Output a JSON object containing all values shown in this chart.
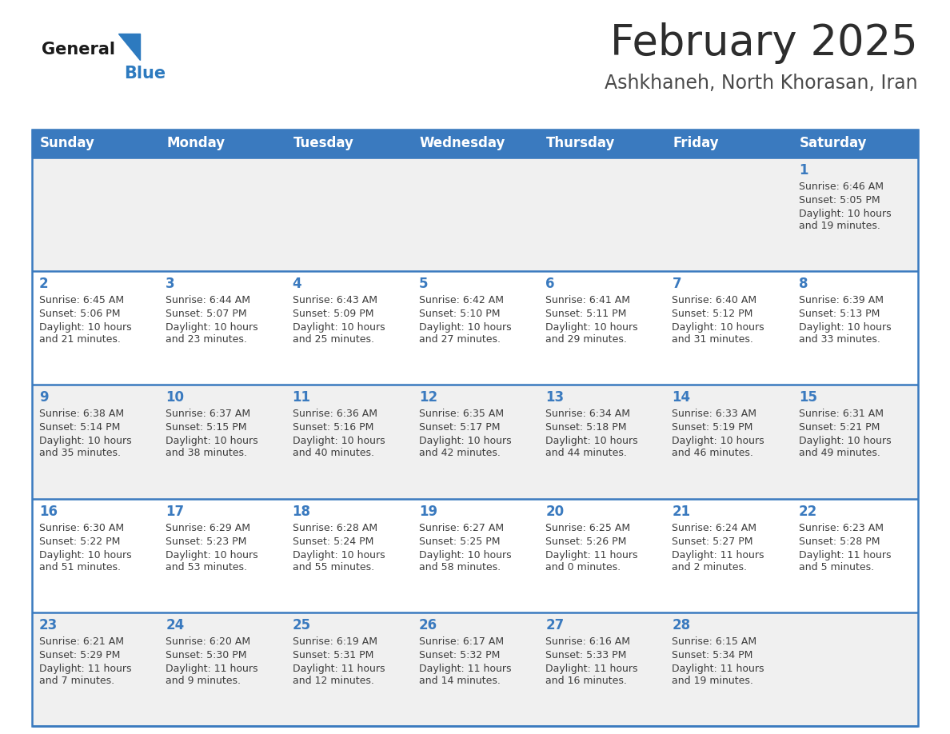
{
  "title": "February 2025",
  "subtitle": "Ashkhaneh, North Khorasan, Iran",
  "days_of_week": [
    "Sunday",
    "Monday",
    "Tuesday",
    "Wednesday",
    "Thursday",
    "Friday",
    "Saturday"
  ],
  "header_bg": "#3a7abf",
  "header_text": "#ffffff",
  "row_bg_odd": "#f0f0f0",
  "row_bg_even": "#ffffff",
  "separator_color": "#3a7abf",
  "day_num_color": "#3a7abf",
  "cell_text_color": "#3d3d3d",
  "title_color": "#2d2d2d",
  "subtitle_color": "#4a4a4a",
  "logo_general_color": "#1a1a1a",
  "logo_blue_color": "#2d7abf",
  "calendar": [
    [
      {
        "day": null,
        "sunrise": null,
        "sunset": null,
        "daylight_line1": null,
        "daylight_line2": null
      },
      {
        "day": null,
        "sunrise": null,
        "sunset": null,
        "daylight_line1": null,
        "daylight_line2": null
      },
      {
        "day": null,
        "sunrise": null,
        "sunset": null,
        "daylight_line1": null,
        "daylight_line2": null
      },
      {
        "day": null,
        "sunrise": null,
        "sunset": null,
        "daylight_line1": null,
        "daylight_line2": null
      },
      {
        "day": null,
        "sunrise": null,
        "sunset": null,
        "daylight_line1": null,
        "daylight_line2": null
      },
      {
        "day": null,
        "sunrise": null,
        "sunset": null,
        "daylight_line1": null,
        "daylight_line2": null
      },
      {
        "day": "1",
        "sunrise": "Sunrise: 6:46 AM",
        "sunset": "Sunset: 5:05 PM",
        "daylight_line1": "Daylight: 10 hours",
        "daylight_line2": "and 19 minutes."
      }
    ],
    [
      {
        "day": "2",
        "sunrise": "Sunrise: 6:45 AM",
        "sunset": "Sunset: 5:06 PM",
        "daylight_line1": "Daylight: 10 hours",
        "daylight_line2": "and 21 minutes."
      },
      {
        "day": "3",
        "sunrise": "Sunrise: 6:44 AM",
        "sunset": "Sunset: 5:07 PM",
        "daylight_line1": "Daylight: 10 hours",
        "daylight_line2": "and 23 minutes."
      },
      {
        "day": "4",
        "sunrise": "Sunrise: 6:43 AM",
        "sunset": "Sunset: 5:09 PM",
        "daylight_line1": "Daylight: 10 hours",
        "daylight_line2": "and 25 minutes."
      },
      {
        "day": "5",
        "sunrise": "Sunrise: 6:42 AM",
        "sunset": "Sunset: 5:10 PM",
        "daylight_line1": "Daylight: 10 hours",
        "daylight_line2": "and 27 minutes."
      },
      {
        "day": "6",
        "sunrise": "Sunrise: 6:41 AM",
        "sunset": "Sunset: 5:11 PM",
        "daylight_line1": "Daylight: 10 hours",
        "daylight_line2": "and 29 minutes."
      },
      {
        "day": "7",
        "sunrise": "Sunrise: 6:40 AM",
        "sunset": "Sunset: 5:12 PM",
        "daylight_line1": "Daylight: 10 hours",
        "daylight_line2": "and 31 minutes."
      },
      {
        "day": "8",
        "sunrise": "Sunrise: 6:39 AM",
        "sunset": "Sunset: 5:13 PM",
        "daylight_line1": "Daylight: 10 hours",
        "daylight_line2": "and 33 minutes."
      }
    ],
    [
      {
        "day": "9",
        "sunrise": "Sunrise: 6:38 AM",
        "sunset": "Sunset: 5:14 PM",
        "daylight_line1": "Daylight: 10 hours",
        "daylight_line2": "and 35 minutes."
      },
      {
        "day": "10",
        "sunrise": "Sunrise: 6:37 AM",
        "sunset": "Sunset: 5:15 PM",
        "daylight_line1": "Daylight: 10 hours",
        "daylight_line2": "and 38 minutes."
      },
      {
        "day": "11",
        "sunrise": "Sunrise: 6:36 AM",
        "sunset": "Sunset: 5:16 PM",
        "daylight_line1": "Daylight: 10 hours",
        "daylight_line2": "and 40 minutes."
      },
      {
        "day": "12",
        "sunrise": "Sunrise: 6:35 AM",
        "sunset": "Sunset: 5:17 PM",
        "daylight_line1": "Daylight: 10 hours",
        "daylight_line2": "and 42 minutes."
      },
      {
        "day": "13",
        "sunrise": "Sunrise: 6:34 AM",
        "sunset": "Sunset: 5:18 PM",
        "daylight_line1": "Daylight: 10 hours",
        "daylight_line2": "and 44 minutes."
      },
      {
        "day": "14",
        "sunrise": "Sunrise: 6:33 AM",
        "sunset": "Sunset: 5:19 PM",
        "daylight_line1": "Daylight: 10 hours",
        "daylight_line2": "and 46 minutes."
      },
      {
        "day": "15",
        "sunrise": "Sunrise: 6:31 AM",
        "sunset": "Sunset: 5:21 PM",
        "daylight_line1": "Daylight: 10 hours",
        "daylight_line2": "and 49 minutes."
      }
    ],
    [
      {
        "day": "16",
        "sunrise": "Sunrise: 6:30 AM",
        "sunset": "Sunset: 5:22 PM",
        "daylight_line1": "Daylight: 10 hours",
        "daylight_line2": "and 51 minutes."
      },
      {
        "day": "17",
        "sunrise": "Sunrise: 6:29 AM",
        "sunset": "Sunset: 5:23 PM",
        "daylight_line1": "Daylight: 10 hours",
        "daylight_line2": "and 53 minutes."
      },
      {
        "day": "18",
        "sunrise": "Sunrise: 6:28 AM",
        "sunset": "Sunset: 5:24 PM",
        "daylight_line1": "Daylight: 10 hours",
        "daylight_line2": "and 55 minutes."
      },
      {
        "day": "19",
        "sunrise": "Sunrise: 6:27 AM",
        "sunset": "Sunset: 5:25 PM",
        "daylight_line1": "Daylight: 10 hours",
        "daylight_line2": "and 58 minutes."
      },
      {
        "day": "20",
        "sunrise": "Sunrise: 6:25 AM",
        "sunset": "Sunset: 5:26 PM",
        "daylight_line1": "Daylight: 11 hours",
        "daylight_line2": "and 0 minutes."
      },
      {
        "day": "21",
        "sunrise": "Sunrise: 6:24 AM",
        "sunset": "Sunset: 5:27 PM",
        "daylight_line1": "Daylight: 11 hours",
        "daylight_line2": "and 2 minutes."
      },
      {
        "day": "22",
        "sunrise": "Sunrise: 6:23 AM",
        "sunset": "Sunset: 5:28 PM",
        "daylight_line1": "Daylight: 11 hours",
        "daylight_line2": "and 5 minutes."
      }
    ],
    [
      {
        "day": "23",
        "sunrise": "Sunrise: 6:21 AM",
        "sunset": "Sunset: 5:29 PM",
        "daylight_line1": "Daylight: 11 hours",
        "daylight_line2": "and 7 minutes."
      },
      {
        "day": "24",
        "sunrise": "Sunrise: 6:20 AM",
        "sunset": "Sunset: 5:30 PM",
        "daylight_line1": "Daylight: 11 hours",
        "daylight_line2": "and 9 minutes."
      },
      {
        "day": "25",
        "sunrise": "Sunrise: 6:19 AM",
        "sunset": "Sunset: 5:31 PM",
        "daylight_line1": "Daylight: 11 hours",
        "daylight_line2": "and 12 minutes."
      },
      {
        "day": "26",
        "sunrise": "Sunrise: 6:17 AM",
        "sunset": "Sunset: 5:32 PM",
        "daylight_line1": "Daylight: 11 hours",
        "daylight_line2": "and 14 minutes."
      },
      {
        "day": "27",
        "sunrise": "Sunrise: 6:16 AM",
        "sunset": "Sunset: 5:33 PM",
        "daylight_line1": "Daylight: 11 hours",
        "daylight_line2": "and 16 minutes."
      },
      {
        "day": "28",
        "sunrise": "Sunrise: 6:15 AM",
        "sunset": "Sunset: 5:34 PM",
        "daylight_line1": "Daylight: 11 hours",
        "daylight_line2": "and 19 minutes."
      },
      {
        "day": null,
        "sunrise": null,
        "sunset": null,
        "daylight_line1": null,
        "daylight_line2": null
      }
    ]
  ]
}
